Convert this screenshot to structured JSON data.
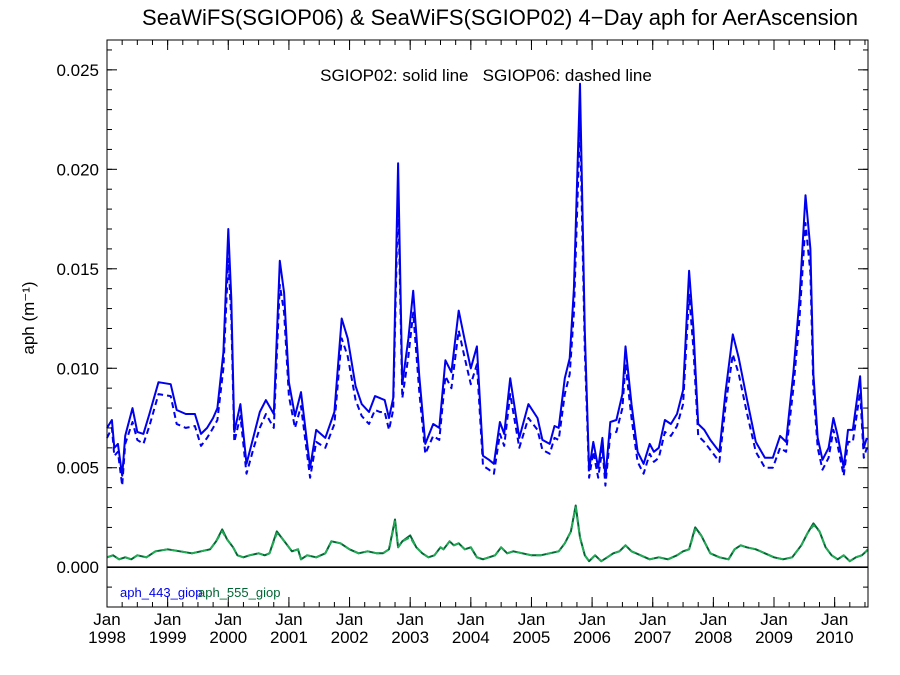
{
  "chart_data": {
    "type": "line",
    "title": "SeaWiFS(SGIOP06) & SeaWiFS(SGIOP02) 4−Day aph for AerAscension",
    "ylabel": "aph (m⁻¹)",
    "annotation": "SGIOP02: solid line   SGIOP06: dashed line",
    "xlim": [
      1998.0,
      2010.55
    ],
    "ylim": [
      -0.002,
      0.0265
    ],
    "yticks": [
      0.0,
      0.005,
      0.01,
      0.015,
      0.02,
      0.025
    ],
    "ytick_labels": [
      "0.000",
      "0.005",
      "0.010",
      "0.015",
      "0.020",
      "0.025"
    ],
    "xticks": [
      1998,
      1999,
      2000,
      2001,
      2002,
      2003,
      2004,
      2005,
      2006,
      2007,
      2008,
      2009,
      2010
    ],
    "xtick_labels_top": [
      "Jan",
      "Jan",
      "Jan",
      "Jan",
      "Jan",
      "Jan",
      "Jan",
      "Jan",
      "Jan",
      "Jan",
      "Jan",
      "Jan",
      "Jan"
    ],
    "xtick_labels_bottom": [
      "1998",
      "1999",
      "2000",
      "2001",
      "2002",
      "2003",
      "2004",
      "2005",
      "2006",
      "2007",
      "2008",
      "2009",
      "2010"
    ],
    "zero_line": 0.0,
    "series": [
      {
        "name": "aph_443_giop",
        "color": "#0000ee",
        "style": "solid",
        "x": [
          1998.0,
          1998.08,
          1998.12,
          1998.18,
          1998.25,
          1998.3,
          1998.42,
          1998.5,
          1998.6,
          1998.7,
          1998.85,
          1999.05,
          1999.15,
          1999.3,
          1999.45,
          1999.55,
          1999.65,
          1999.75,
          1999.82,
          1999.92,
          2000.0,
          2000.05,
          2000.1,
          2000.2,
          2000.3,
          2000.42,
          2000.52,
          2000.62,
          2000.75,
          2000.85,
          2000.92,
          2001.0,
          2001.1,
          2001.2,
          2001.35,
          2001.45,
          2001.6,
          2001.75,
          2001.87,
          2001.97,
          2002.1,
          2002.2,
          2002.32,
          2002.42,
          2002.5,
          2002.58,
          2002.65,
          2002.72,
          2002.8,
          2002.87,
          2002.97,
          2003.05,
          2003.15,
          2003.25,
          2003.38,
          2003.48,
          2003.58,
          2003.68,
          2003.8,
          2003.9,
          2004.0,
          2004.1,
          2004.2,
          2004.3,
          2004.38,
          2004.48,
          2004.55,
          2004.65,
          2004.8,
          2004.95,
          2005.1,
          2005.18,
          2005.3,
          2005.38,
          2005.45,
          2005.55,
          2005.63,
          2005.7,
          2005.8,
          2005.88,
          2005.95,
          2006.02,
          2006.1,
          2006.17,
          2006.22,
          2006.3,
          2006.4,
          2006.5,
          2006.55,
          2006.65,
          2006.75,
          2006.85,
          2006.95,
          2007.02,
          2007.1,
          2007.2,
          2007.3,
          2007.4,
          2007.5,
          2007.6,
          2007.67,
          2007.75,
          2007.85,
          2007.95,
          2008.1,
          2008.2,
          2008.32,
          2008.42,
          2008.55,
          2008.7,
          2008.85,
          2008.98,
          2009.1,
          2009.2,
          2009.32,
          2009.42,
          2009.52,
          2009.6,
          2009.65,
          2009.72,
          2009.8,
          2009.9,
          2009.98,
          2010.05,
          2010.15,
          2010.22,
          2010.3,
          2010.42,
          2010.48,
          2010.53
        ],
        "values": [
          0.007,
          0.0074,
          0.006,
          0.0062,
          0.0046,
          0.0066,
          0.008,
          0.0068,
          0.0067,
          0.0077,
          0.0093,
          0.0092,
          0.0079,
          0.0077,
          0.0077,
          0.0067,
          0.007,
          0.0075,
          0.008,
          0.0108,
          0.017,
          0.0135,
          0.0068,
          0.0082,
          0.0052,
          0.0066,
          0.0078,
          0.0084,
          0.0077,
          0.0154,
          0.0138,
          0.0093,
          0.0076,
          0.0088,
          0.005,
          0.0069,
          0.0065,
          0.0078,
          0.0125,
          0.0115,
          0.0091,
          0.0082,
          0.0078,
          0.0086,
          0.0085,
          0.0084,
          0.0075,
          0.0085,
          0.0203,
          0.0092,
          0.0115,
          0.0139,
          0.0096,
          0.0062,
          0.0072,
          0.007,
          0.0104,
          0.0098,
          0.0129,
          0.0114,
          0.01,
          0.0111,
          0.0056,
          0.0054,
          0.0052,
          0.0073,
          0.0067,
          0.0095,
          0.0065,
          0.0082,
          0.0075,
          0.0064,
          0.0062,
          0.0071,
          0.007,
          0.0095,
          0.0105,
          0.014,
          0.0243,
          0.0119,
          0.0049,
          0.0063,
          0.005,
          0.0065,
          0.0045,
          0.0073,
          0.0074,
          0.0087,
          0.0111,
          0.0082,
          0.0058,
          0.0052,
          0.0062,
          0.0058,
          0.006,
          0.0074,
          0.0072,
          0.0077,
          0.0089,
          0.0149,
          0.012,
          0.0072,
          0.0069,
          0.0064,
          0.0058,
          0.0088,
          0.0117,
          0.0105,
          0.0085,
          0.0063,
          0.0055,
          0.0055,
          0.0066,
          0.0063,
          0.0098,
          0.0135,
          0.0187,
          0.016,
          0.0097,
          0.0065,
          0.0054,
          0.006,
          0.0075,
          0.0066,
          0.005,
          0.0069,
          0.0069,
          0.0096,
          0.006,
          0.0065
        ]
      },
      {
        "name": "aph_443_giop SGIOP06",
        "color": "#0000ee",
        "style": "dashed",
        "x": [
          1998.0,
          1998.08,
          1998.12,
          1998.18,
          1998.25,
          1998.3,
          1998.42,
          1998.5,
          1998.6,
          1998.7,
          1998.85,
          1999.05,
          1999.15,
          1999.3,
          1999.45,
          1999.55,
          1999.65,
          1999.75,
          1999.82,
          1999.92,
          2000.0,
          2000.05,
          2000.1,
          2000.2,
          2000.3,
          2000.42,
          2000.52,
          2000.62,
          2000.75,
          2000.85,
          2000.92,
          2001.0,
          2001.1,
          2001.2,
          2001.35,
          2001.45,
          2001.6,
          2001.75,
          2001.87,
          2001.97,
          2002.1,
          2002.2,
          2002.32,
          2002.42,
          2002.5,
          2002.58,
          2002.65,
          2002.72,
          2002.8,
          2002.87,
          2002.97,
          2003.05,
          2003.15,
          2003.25,
          2003.38,
          2003.48,
          2003.58,
          2003.68,
          2003.8,
          2003.9,
          2004.0,
          2004.1,
          2004.2,
          2004.3,
          2004.38,
          2004.48,
          2004.55,
          2004.65,
          2004.8,
          2004.95,
          2005.1,
          2005.18,
          2005.3,
          2005.38,
          2005.45,
          2005.55,
          2005.63,
          2005.7,
          2005.8,
          2005.88,
          2005.95,
          2006.02,
          2006.1,
          2006.17,
          2006.22,
          2006.3,
          2006.4,
          2006.5,
          2006.55,
          2006.65,
          2006.75,
          2006.85,
          2006.95,
          2007.02,
          2007.1,
          2007.2,
          2007.3,
          2007.4,
          2007.5,
          2007.6,
          2007.67,
          2007.75,
          2007.85,
          2007.95,
          2008.1,
          2008.2,
          2008.32,
          2008.42,
          2008.55,
          2008.7,
          2008.85,
          2008.98,
          2009.1,
          2009.2,
          2009.32,
          2009.42,
          2009.52,
          2009.6,
          2009.65,
          2009.72,
          2009.8,
          2009.9,
          2009.98,
          2010.05,
          2010.15,
          2010.22,
          2010.3,
          2010.42,
          2010.48,
          2010.53
        ],
        "values": [
          0.0065,
          0.007,
          0.0056,
          0.0058,
          0.0041,
          0.0062,
          0.0073,
          0.0064,
          0.0062,
          0.0071,
          0.0087,
          0.0086,
          0.0072,
          0.007,
          0.0071,
          0.0061,
          0.0065,
          0.007,
          0.0074,
          0.01,
          0.0155,
          0.0125,
          0.0063,
          0.0076,
          0.0047,
          0.006,
          0.007,
          0.0077,
          0.007,
          0.0142,
          0.0128,
          0.0086,
          0.007,
          0.0081,
          0.0045,
          0.0063,
          0.006,
          0.0072,
          0.0115,
          0.0106,
          0.0084,
          0.0076,
          0.0072,
          0.0079,
          0.0078,
          0.0078,
          0.0069,
          0.0079,
          0.0188,
          0.0085,
          0.0106,
          0.0128,
          0.0088,
          0.0057,
          0.0066,
          0.0064,
          0.0096,
          0.009,
          0.0119,
          0.0105,
          0.0092,
          0.0102,
          0.0051,
          0.0049,
          0.0047,
          0.0067,
          0.0061,
          0.0087,
          0.006,
          0.0075,
          0.0069,
          0.0059,
          0.0057,
          0.0065,
          0.0064,
          0.0087,
          0.0097,
          0.0128,
          0.0224,
          0.0109,
          0.0045,
          0.0058,
          0.0045,
          0.006,
          0.0041,
          0.0067,
          0.0068,
          0.008,
          0.0102,
          0.0075,
          0.0053,
          0.0047,
          0.0057,
          0.0053,
          0.0055,
          0.0068,
          0.0066,
          0.0071,
          0.0082,
          0.0137,
          0.011,
          0.0066,
          0.0063,
          0.0059,
          0.0053,
          0.0081,
          0.0107,
          0.0097,
          0.0078,
          0.0058,
          0.005,
          0.005,
          0.006,
          0.0058,
          0.009,
          0.0125,
          0.0173,
          0.0148,
          0.0089,
          0.006,
          0.0049,
          0.0055,
          0.0069,
          0.0061,
          0.0046,
          0.0063,
          0.0063,
          0.0088,
          0.0055,
          0.006
        ]
      },
      {
        "name": "aph_555_giop",
        "color": "#006633",
        "style": "solid",
        "x": [
          1998.0,
          1998.1,
          1998.2,
          1998.3,
          1998.4,
          1998.5,
          1998.65,
          1998.8,
          1999.0,
          1999.2,
          1999.4,
          1999.55,
          1999.7,
          1999.8,
          1999.9,
          1999.98,
          2000.08,
          2000.15,
          2000.25,
          2000.35,
          2000.5,
          2000.6,
          2000.68,
          2000.8,
          2000.85,
          2000.95,
          2001.05,
          2001.15,
          2001.2,
          2001.3,
          2001.45,
          2001.6,
          2001.7,
          2001.85,
          2002.0,
          2002.15,
          2002.3,
          2002.45,
          2002.55,
          2002.65,
          2002.75,
          2002.8,
          2002.87,
          2003.0,
          2003.1,
          2003.2,
          2003.3,
          2003.4,
          2003.5,
          2003.55,
          2003.65,
          2003.72,
          2003.8,
          2003.9,
          2004.0,
          2004.1,
          2004.2,
          2004.3,
          2004.4,
          2004.5,
          2004.6,
          2004.7,
          2004.85,
          2005.0,
          2005.15,
          2005.3,
          2005.45,
          2005.55,
          2005.65,
          2005.73,
          2005.8,
          2005.88,
          2005.95,
          2006.05,
          2006.15,
          2006.25,
          2006.35,
          2006.45,
          2006.55,
          2006.65,
          2006.8,
          2006.95,
          2007.1,
          2007.25,
          2007.4,
          2007.5,
          2007.6,
          2007.7,
          2007.8,
          2007.95,
          2008.1,
          2008.25,
          2008.35,
          2008.45,
          2008.55,
          2008.7,
          2008.85,
          2009.0,
          2009.15,
          2009.3,
          2009.45,
          2009.55,
          2009.65,
          2009.75,
          2009.85,
          2009.95,
          2010.05,
          2010.15,
          2010.25,
          2010.35,
          2010.45,
          2010.52,
          2010.55
        ],
        "values": [
          0.0005,
          0.0006,
          0.0004,
          0.0005,
          0.0004,
          0.0006,
          0.0005,
          0.0008,
          0.0009,
          0.0008,
          0.0007,
          0.0008,
          0.0009,
          0.0013,
          0.0019,
          0.0014,
          0.001,
          0.0006,
          0.0005,
          0.0006,
          0.0007,
          0.0006,
          0.0007,
          0.0018,
          0.0016,
          0.0012,
          0.0008,
          0.0009,
          0.0004,
          0.0006,
          0.0005,
          0.0007,
          0.0013,
          0.0012,
          0.0009,
          0.0007,
          0.0008,
          0.0007,
          0.0007,
          0.0009,
          0.0024,
          0.001,
          0.0013,
          0.0016,
          0.001,
          0.0007,
          0.0005,
          0.0006,
          0.001,
          0.0009,
          0.0013,
          0.0011,
          0.0012,
          0.0009,
          0.001,
          0.0005,
          0.0004,
          0.0005,
          0.0006,
          0.001,
          0.0007,
          0.0008,
          0.0007,
          0.0006,
          0.0006,
          0.0007,
          0.0008,
          0.0012,
          0.0018,
          0.0031,
          0.0015,
          0.0006,
          0.0003,
          0.0006,
          0.0003,
          0.0005,
          0.0007,
          0.0008,
          0.0011,
          0.0008,
          0.0006,
          0.0004,
          0.0005,
          0.0004,
          0.0006,
          0.0008,
          0.0009,
          0.002,
          0.0016,
          0.0007,
          0.0005,
          0.0004,
          0.0009,
          0.0011,
          0.001,
          0.0009,
          0.0007,
          0.0005,
          0.0004,
          0.0005,
          0.0011,
          0.0017,
          0.0022,
          0.0018,
          0.001,
          0.0006,
          0.0004,
          0.0006,
          0.0003,
          0.0005,
          0.0006,
          0.0008,
          0.0009
        ]
      },
      {
        "name": "aph_555_giop SGIOP06",
        "color": "#22aa55",
        "style": "dashed",
        "x": [
          1998.0,
          1998.1,
          1998.2,
          1998.3,
          1998.4,
          1998.5,
          1998.65,
          1998.8,
          1999.0,
          1999.2,
          1999.4,
          1999.55,
          1999.7,
          1999.8,
          1999.9,
          1999.98,
          2000.08,
          2000.15,
          2000.25,
          2000.35,
          2000.5,
          2000.6,
          2000.68,
          2000.8,
          2000.85,
          2000.95,
          2001.05,
          2001.15,
          2001.2,
          2001.3,
          2001.45,
          2001.6,
          2001.7,
          2001.85,
          2002.0,
          2002.15,
          2002.3,
          2002.45,
          2002.55,
          2002.65,
          2002.75,
          2002.8,
          2002.87,
          2003.0,
          2003.1,
          2003.2,
          2003.3,
          2003.4,
          2003.5,
          2003.55,
          2003.65,
          2003.72,
          2003.8,
          2003.9,
          2004.0,
          2004.1,
          2004.2,
          2004.3,
          2004.4,
          2004.5,
          2004.6,
          2004.7,
          2004.85,
          2005.0,
          2005.15,
          2005.3,
          2005.45,
          2005.55,
          2005.65,
          2005.73,
          2005.8,
          2005.88,
          2005.95,
          2006.05,
          2006.15,
          2006.25,
          2006.35,
          2006.45,
          2006.55,
          2006.65,
          2006.8,
          2006.95,
          2007.1,
          2007.25,
          2007.4,
          2007.5,
          2007.6,
          2007.7,
          2007.8,
          2007.95,
          2008.1,
          2008.25,
          2008.35,
          2008.45,
          2008.55,
          2008.7,
          2008.85,
          2009.0,
          2009.15,
          2009.3,
          2009.45,
          2009.55,
          2009.65,
          2009.75,
          2009.85,
          2009.95,
          2010.05,
          2010.15,
          2010.25,
          2010.35,
          2010.45,
          2010.52,
          2010.55
        ],
        "values": [
          0.0005,
          0.0006,
          0.0004,
          0.0005,
          0.0004,
          0.0006,
          0.0005,
          0.0008,
          0.0009,
          0.0008,
          0.0007,
          0.0008,
          0.0009,
          0.0013,
          0.0018,
          0.0014,
          0.001,
          0.0006,
          0.0005,
          0.0006,
          0.0007,
          0.0006,
          0.0007,
          0.0017,
          0.0016,
          0.0012,
          0.0008,
          0.0009,
          0.0004,
          0.0006,
          0.0005,
          0.0007,
          0.0013,
          0.0012,
          0.0009,
          0.0007,
          0.0008,
          0.0007,
          0.0007,
          0.0009,
          0.0023,
          0.001,
          0.0013,
          0.0015,
          0.001,
          0.0007,
          0.0005,
          0.0006,
          0.001,
          0.0009,
          0.0013,
          0.0011,
          0.0012,
          0.0009,
          0.001,
          0.0005,
          0.0004,
          0.0005,
          0.0006,
          0.001,
          0.0007,
          0.0008,
          0.0007,
          0.0006,
          0.0006,
          0.0007,
          0.0008,
          0.0012,
          0.0018,
          0.003,
          0.0015,
          0.0006,
          0.0003,
          0.0006,
          0.0003,
          0.0005,
          0.0007,
          0.0008,
          0.0011,
          0.0008,
          0.0006,
          0.0004,
          0.0005,
          0.0004,
          0.0006,
          0.0008,
          0.0009,
          0.0019,
          0.0016,
          0.0007,
          0.0005,
          0.0004,
          0.0009,
          0.0011,
          0.001,
          0.0009,
          0.0007,
          0.0005,
          0.0004,
          0.0005,
          0.0011,
          0.0017,
          0.0021,
          0.0018,
          0.001,
          0.0006,
          0.0004,
          0.0006,
          0.0003,
          0.0005,
          0.0006,
          0.0008,
          0.0009
        ]
      }
    ],
    "legend": [
      {
        "label": "aph_443_giop",
        "color": "#0000ee"
      },
      {
        "label": "aph_555_giop",
        "color": "#006633"
      }
    ],
    "legend_position": "bottom-left inside"
  }
}
